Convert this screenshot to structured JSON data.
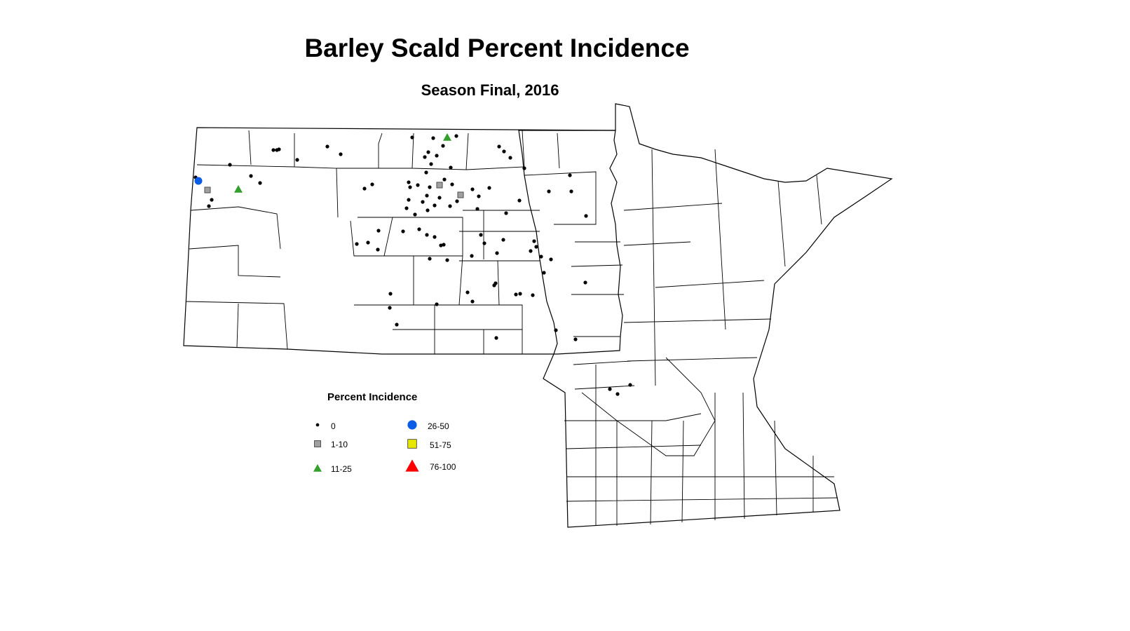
{
  "title": "Barley Scald Percent Incidence",
  "subtitle": "Season Final, 2016",
  "legend": {
    "title": "Percent Incidence",
    "items": [
      {
        "label": "0",
        "symbol": "dot",
        "color": "#000000"
      },
      {
        "label": "1-10",
        "symbol": "square",
        "color": "#a0a0a0"
      },
      {
        "label": "11-25",
        "symbol": "triangle",
        "color": "#33a02c"
      },
      {
        "label": "26-50",
        "symbol": "circle",
        "color": "#0a5ce6"
      },
      {
        "label": "51-75",
        "symbol": "square",
        "color": "#e6e600"
      },
      {
        "label": "76-100",
        "symbol": "triangle",
        "color": "#ff0000"
      }
    ]
  }
}
